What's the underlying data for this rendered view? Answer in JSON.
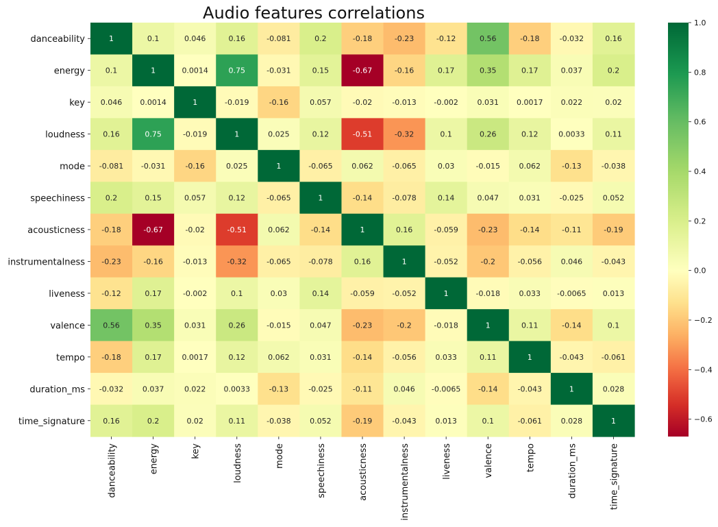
{
  "chart_data": {
    "type": "heatmap",
    "title": "Audio features correlations",
    "labels": [
      "danceability",
      "energy",
      "key",
      "loudness",
      "mode",
      "speechiness",
      "acousticness",
      "instrumentalness",
      "liveness",
      "valence",
      "tempo",
      "duration_ms",
      "time_signature"
    ],
    "matrix": [
      [
        "1",
        "0.1",
        "0.046",
        "0.16",
        "-0.081",
        "0.2",
        "-0.18",
        "-0.23",
        "-0.12",
        "0.56",
        "-0.18",
        "-0.032",
        "0.16"
      ],
      [
        "0.1",
        "1",
        "0.0014",
        "0.75",
        "-0.031",
        "0.15",
        "-0.67",
        "-0.16",
        "0.17",
        "0.35",
        "0.17",
        "0.037",
        "0.2"
      ],
      [
        "0.046",
        "0.0014",
        "1",
        "-0.019",
        "-0.16",
        "0.057",
        "-0.02",
        "-0.013",
        "-0.002",
        "0.031",
        "0.0017",
        "0.022",
        "0.02"
      ],
      [
        "0.16",
        "0.75",
        "-0.019",
        "1",
        "0.025",
        "0.12",
        "-0.51",
        "-0.32",
        "0.1",
        "0.26",
        "0.12",
        "0.0033",
        "0.11"
      ],
      [
        "-0.081",
        "-0.031",
        "-0.16",
        "0.025",
        "1",
        "-0.065",
        "0.062",
        "-0.065",
        "0.03",
        "-0.015",
        "0.062",
        "-0.13",
        "-0.038"
      ],
      [
        "0.2",
        "0.15",
        "0.057",
        "0.12",
        "-0.065",
        "1",
        "-0.14",
        "-0.078",
        "0.14",
        "0.047",
        "0.031",
        "-0.025",
        "0.052"
      ],
      [
        "-0.18",
        "-0.67",
        "-0.02",
        "-0.51",
        "0.062",
        "-0.14",
        "1",
        "0.16",
        "-0.059",
        "-0.23",
        "-0.14",
        "-0.11",
        "-0.19"
      ],
      [
        "-0.23",
        "-0.16",
        "-0.013",
        "-0.32",
        "-0.065",
        "-0.078",
        "0.16",
        "1",
        "-0.052",
        "-0.2",
        "-0.056",
        "0.046",
        "-0.043"
      ],
      [
        "-0.12",
        "0.17",
        "-0.002",
        "0.1",
        "0.03",
        "0.14",
        "-0.059",
        "-0.052",
        "1",
        "-0.018",
        "0.033",
        "-0.0065",
        "0.013"
      ],
      [
        "0.56",
        "0.35",
        "0.031",
        "0.26",
        "-0.015",
        "0.047",
        "-0.23",
        "-0.2",
        "-0.018",
        "1",
        "0.11",
        "-0.14",
        "0.1"
      ],
      [
        "-0.18",
        "0.17",
        "0.0017",
        "0.12",
        "0.062",
        "0.031",
        "-0.14",
        "-0.056",
        "0.033",
        "0.11",
        "1",
        "-0.043",
        "-0.061"
      ],
      [
        "-0.032",
        "0.037",
        "0.022",
        "0.0033",
        "-0.13",
        "-0.025",
        "-0.11",
        "0.046",
        "-0.0065",
        "-0.14",
        "-0.043",
        "1",
        "0.028"
      ],
      [
        "0.16",
        "0.2",
        "0.02",
        "0.11",
        "-0.038",
        "0.052",
        "-0.19",
        "-0.043",
        "0.013",
        "0.1",
        "-0.061",
        "0.028",
        "1"
      ]
    ],
    "colormap": "RdYlGn",
    "vmin": -0.67,
    "vmax": 1.0,
    "colorbar_ticks": [
      "1.0",
      "0.8",
      "0.6",
      "0.4",
      "0.2",
      "0.0",
      "−0.2",
      "−0.4",
      "−0.6"
    ],
    "colorbar_tick_values": [
      1.0,
      0.8,
      0.6,
      0.4,
      0.2,
      0.0,
      -0.2,
      -0.4,
      -0.6
    ],
    "legend_position": "right",
    "grid": false
  }
}
